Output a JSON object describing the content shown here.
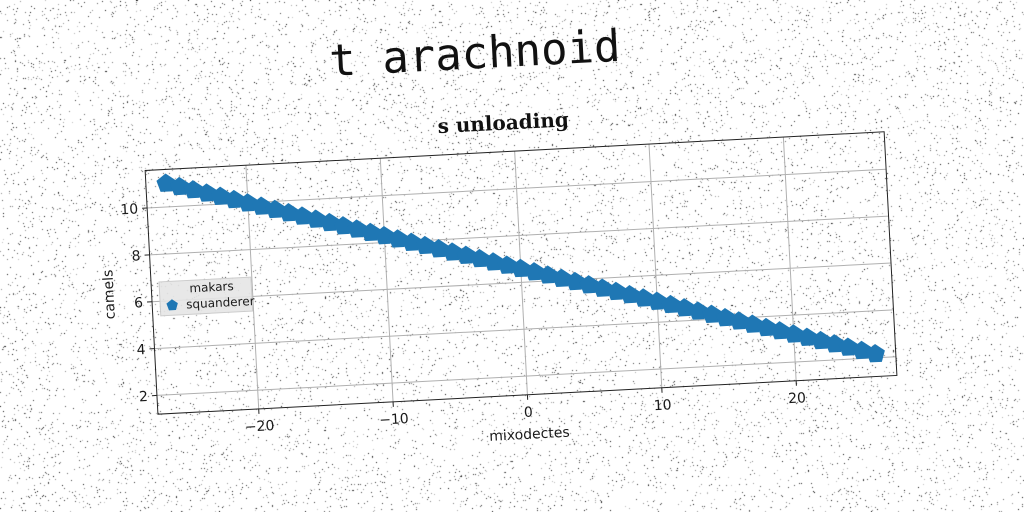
{
  "figure_title": "t arachnoid",
  "chart_data": {
    "type": "scatter",
    "title": "s unloading",
    "xlabel": "mixodectes",
    "ylabel": "camels",
    "xlim": [
      -27.5,
      27.5
    ],
    "ylim": [
      1.2,
      11.6
    ],
    "xticks": [
      -20,
      -10,
      0,
      10,
      20
    ],
    "yticks": [
      2,
      4,
      6,
      8,
      10
    ],
    "grid": true,
    "legend": {
      "title": "makars",
      "placement": "center-left",
      "entries": [
        "squanderer"
      ]
    },
    "series": [
      {
        "name": "squanderer",
        "marker": "pentagon",
        "color": "#1f77b4",
        "x": [
          -26,
          -25,
          -24,
          -23,
          -22,
          -21,
          -20,
          -19,
          -18,
          -17,
          -16,
          -15,
          -14,
          -13,
          -12,
          -11,
          -10,
          -9,
          -8,
          -7,
          -6,
          -5,
          -4,
          -3,
          -2,
          -1,
          0,
          1,
          2,
          3,
          4,
          5,
          6,
          7,
          8,
          9,
          10,
          11,
          12,
          13,
          14,
          15,
          16,
          17,
          18,
          19,
          20,
          21,
          22,
          23,
          24,
          25,
          26
        ],
        "y": [
          11.0,
          10.83,
          10.66,
          10.49,
          10.32,
          10.15,
          9.98,
          9.81,
          9.64,
          9.47,
          9.3,
          9.13,
          8.96,
          8.79,
          8.62,
          8.45,
          8.28,
          8.11,
          7.94,
          7.77,
          7.6,
          7.43,
          7.26,
          7.09,
          6.92,
          6.75,
          6.58,
          6.41,
          6.24,
          6.07,
          5.9,
          5.73,
          5.56,
          5.39,
          5.22,
          5.05,
          4.88,
          4.71,
          4.54,
          4.37,
          4.2,
          4.03,
          3.86,
          3.69,
          3.52,
          3.35,
          3.18,
          3.01,
          2.84,
          2.67,
          2.5,
          2.33,
          2.16
        ]
      }
    ]
  }
}
